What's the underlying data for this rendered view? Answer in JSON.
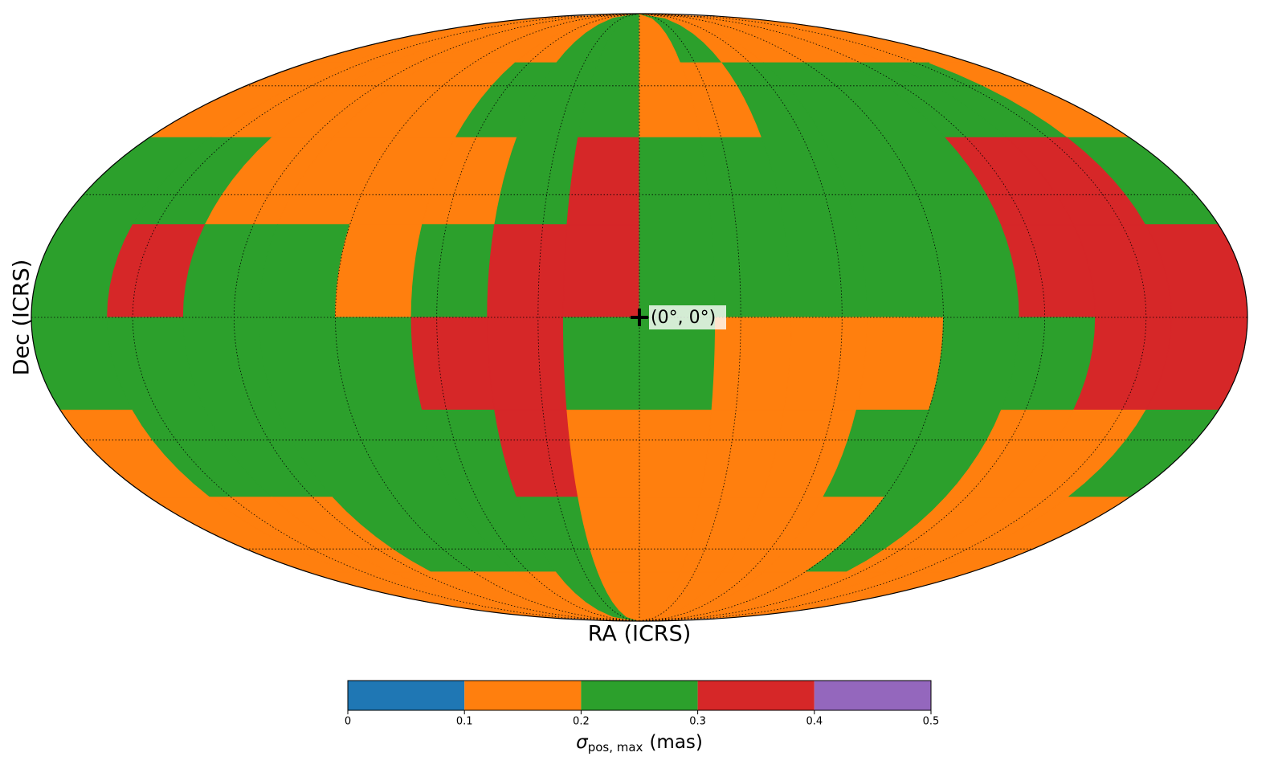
{
  "chart_data": {
    "type": "mollweide",
    "x_label": "RA (ICRS)",
    "y_label": "Dec (ICRS)",
    "lat_grid": [
      -60,
      -30,
      0,
      30,
      60
    ],
    "lon_grid": [
      -150,
      -120,
      -90,
      -60,
      -30,
      0,
      30,
      60,
      90,
      120,
      150
    ],
    "marker": {
      "lon": 0,
      "lat": 0,
      "label": "(0°, 0°)"
    },
    "map": [
      [
        0.15,
        0.15,
        0.15,
        0.15,
        0.15,
        0.15,
        0.25,
        0.25,
        0.15,
        0.25,
        0.15,
        0.15,
        0.15,
        0.15,
        0.15,
        0.15
      ],
      [
        0.15,
        0.15,
        0.15,
        0.15,
        0.15,
        0.25,
        0.25,
        0.25,
        0.15,
        0.15,
        0.25,
        0.25,
        0.25,
        0.25,
        0.25,
        0.15
      ],
      [
        0.25,
        0.25,
        0.15,
        0.15,
        0.15,
        0.15,
        0.25,
        0.35,
        0.25,
        0.25,
        0.25,
        0.25,
        0.25,
        0.35,
        0.35,
        0.25
      ],
      [
        0.25,
        0.35,
        0.25,
        0.25,
        0.15,
        0.25,
        0.35,
        0.35,
        0.25,
        0.25,
        0.25,
        0.25,
        0.25,
        0.35,
        0.35,
        0.35
      ],
      [
        0.25,
        0.25,
        0.25,
        0.25,
        0.25,
        0.35,
        0.35,
        0.25,
        0.25,
        0.15,
        0.15,
        0.15,
        0.25,
        0.25,
        0.35,
        0.35
      ],
      [
        0.15,
        0.25,
        0.25,
        0.25,
        0.25,
        0.25,
        0.35,
        0.15,
        0.15,
        0.15,
        0.15,
        0.25,
        0.25,
        0.15,
        0.15,
        0.25
      ],
      [
        0.15,
        0.15,
        0.15,
        0.25,
        0.25,
        0.25,
        0.25,
        0.15,
        0.15,
        0.15,
        0.15,
        0.15,
        0.25,
        0.15,
        0.15,
        0.15
      ],
      [
        0.15,
        0.15,
        0.15,
        0.15,
        0.15,
        0.15,
        0.25,
        0.15,
        0.15,
        0.15,
        0.15,
        0.15,
        0.15,
        0.15,
        0.15,
        0.15
      ]
    ],
    "colorbar": {
      "ticks": [
        0,
        0.1,
        0.2,
        0.3,
        0.4,
        0.5
      ],
      "colors": [
        "#1f77b4",
        "#ff7f0e",
        "#2ca02c",
        "#d62728",
        "#9467bd"
      ],
      "symbol": "σ",
      "subscript": "pos, max",
      "unit": "(mas)"
    }
  }
}
